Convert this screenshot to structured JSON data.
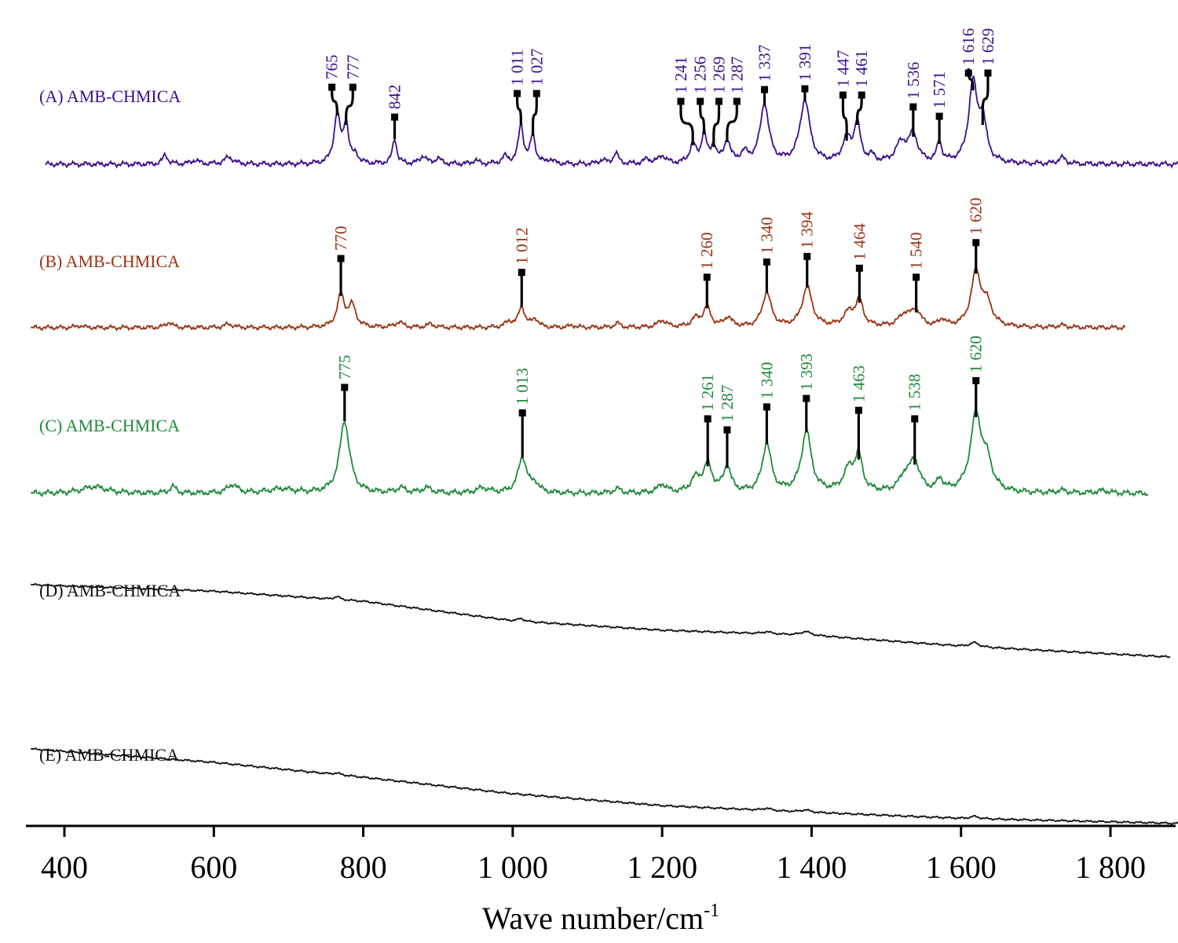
{
  "chart_data": {
    "type": "line",
    "title": "",
    "xlabel": "Wave number/cm",
    "xlabel_superscript": "-1",
    "ylabel": "",
    "xlim": [
      350,
      1900
    ],
    "x_ticks": [
      {
        "value": 400,
        "label": "400"
      },
      {
        "value": 600,
        "label": "600"
      },
      {
        "value": 800,
        "label": "800"
      },
      {
        "value": 1000,
        "label": "1 000"
      },
      {
        "value": 1200,
        "label": "1 200"
      },
      {
        "value": 1400,
        "label": "1 400"
      },
      {
        "value": 1600,
        "label": "1 600"
      },
      {
        "value": 1800,
        "label": "1 800"
      }
    ],
    "series": [
      {
        "id": "A",
        "name": "(A)  AMB-CHMICA",
        "color": "#3b0f8a",
        "x_range": [
          375,
          1890
        ],
        "baseline": 0.0,
        "background": [],
        "peaks": [
          {
            "x": 535,
            "height": 0.12,
            "width": 4
          },
          {
            "x": 575,
            "height": 0.05,
            "width": 6
          },
          {
            "x": 620,
            "height": 0.09,
            "width": 7
          },
          {
            "x": 765,
            "height": 0.62,
            "width": 5
          },
          {
            "x": 777,
            "height": 0.5,
            "width": 4
          },
          {
            "x": 790,
            "height": 0.1,
            "width": 4
          },
          {
            "x": 842,
            "height": 0.32,
            "width": 3.5
          },
          {
            "x": 880,
            "height": 0.1,
            "width": 5
          },
          {
            "x": 900,
            "height": 0.07,
            "width": 5
          },
          {
            "x": 950,
            "height": 0.05,
            "width": 4
          },
          {
            "x": 990,
            "height": 0.09,
            "width": 5
          },
          {
            "x": 1011,
            "height": 0.5,
            "width": 4
          },
          {
            "x": 1027,
            "height": 0.36,
            "width": 4
          },
          {
            "x": 1050,
            "height": 0.05,
            "width": 5
          },
          {
            "x": 1120,
            "height": 0.05,
            "width": 5
          },
          {
            "x": 1138,
            "height": 0.14,
            "width": 4
          },
          {
            "x": 1180,
            "height": 0.06,
            "width": 5
          },
          {
            "x": 1200,
            "height": 0.1,
            "width": 6
          },
          {
            "x": 1241,
            "height": 0.24,
            "width": 5
          },
          {
            "x": 1256,
            "height": 0.38,
            "width": 4
          },
          {
            "x": 1269,
            "height": 0.22,
            "width": 4
          },
          {
            "x": 1287,
            "height": 0.28,
            "width": 5
          },
          {
            "x": 1310,
            "height": 0.12,
            "width": 6
          },
          {
            "x": 1337,
            "height": 0.75,
            "width": 7
          },
          {
            "x": 1391,
            "height": 0.8,
            "width": 8
          },
          {
            "x": 1447,
            "height": 0.3,
            "width": 7
          },
          {
            "x": 1461,
            "height": 0.5,
            "width": 5
          },
          {
            "x": 1480,
            "height": 0.08,
            "width": 5
          },
          {
            "x": 1520,
            "height": 0.25,
            "width": 9
          },
          {
            "x": 1536,
            "height": 0.35,
            "width": 7
          },
          {
            "x": 1571,
            "height": 0.26,
            "width": 4
          },
          {
            "x": 1616,
            "height": 1.0,
            "width": 7
          },
          {
            "x": 1629,
            "height": 0.5,
            "width": 6
          },
          {
            "x": 1735,
            "height": 0.08,
            "width": 6
          }
        ],
        "labels": [
          {
            "text": "765",
            "x": 765,
            "tip": 0.62,
            "lx": 758,
            "top": 0.98
          },
          {
            "text": "777",
            "x": 777,
            "tip": 0.5,
            "lx": 786,
            "top": 0.98
          },
          {
            "text": "842",
            "x": 842,
            "tip": 0.32,
            "lx": 842,
            "top": 0.6
          },
          {
            "text": "1 011",
            "x": 1011,
            "tip": 0.5,
            "lx": 1006,
            "top": 0.9
          },
          {
            "text": "1 027",
            "x": 1027,
            "tip": 0.36,
            "lx": 1032,
            "top": 0.9
          },
          {
            "text": "1 241",
            "x": 1241,
            "tip": 0.24,
            "lx": 1225,
            "top": 0.8
          },
          {
            "text": "1 256",
            "x": 1256,
            "tip": 0.38,
            "lx": 1251,
            "top": 0.8
          },
          {
            "text": "1 269",
            "x": 1269,
            "tip": 0.22,
            "lx": 1276,
            "top": 0.8
          },
          {
            "text": "1 287",
            "x": 1287,
            "tip": 0.28,
            "lx": 1300,
            "top": 0.8
          },
          {
            "text": "1 337",
            "x": 1337,
            "tip": 0.75,
            "lx": 1337,
            "top": 0.95
          },
          {
            "text": "1 391",
            "x": 1391,
            "tip": 0.8,
            "lx": 1391,
            "top": 0.96
          },
          {
            "text": "1 447",
            "x": 1447,
            "tip": 0.3,
            "lx": 1442,
            "top": 0.88
          },
          {
            "text": "1 461",
            "x": 1461,
            "tip": 0.5,
            "lx": 1467,
            "top": 0.88
          },
          {
            "text": "1 536",
            "x": 1536,
            "tip": 0.35,
            "lx": 1536,
            "top": 0.73
          },
          {
            "text": "1 571",
            "x": 1571,
            "tip": 0.26,
            "lx": 1571,
            "top": 0.61
          },
          {
            "text": "1 616",
            "x": 1616,
            "tip": 1.0,
            "lx": 1610,
            "top": 1.16
          },
          {
            "text": "1 629",
            "x": 1629,
            "tip": 0.5,
            "lx": 1636,
            "top": 1.16
          }
        ]
      },
      {
        "id": "B",
        "name": "(B)  AMB-CHMICA",
        "color": "#9a3412",
        "x_range": [
          355,
          1820
        ],
        "baseline": 0.0,
        "background": [],
        "peaks": [
          {
            "x": 420,
            "height": 0.03,
            "width": 6
          },
          {
            "x": 540,
            "height": 0.08,
            "width": 5
          },
          {
            "x": 620,
            "height": 0.05,
            "width": 7
          },
          {
            "x": 770,
            "height": 0.46,
            "width": 6
          },
          {
            "x": 785,
            "height": 0.3,
            "width": 6
          },
          {
            "x": 848,
            "height": 0.08,
            "width": 6
          },
          {
            "x": 890,
            "height": 0.05,
            "width": 6
          },
          {
            "x": 995,
            "height": 0.08,
            "width": 6
          },
          {
            "x": 1012,
            "height": 0.3,
            "width": 5
          },
          {
            "x": 1030,
            "height": 0.12,
            "width": 5
          },
          {
            "x": 1080,
            "height": 0.03,
            "width": 5
          },
          {
            "x": 1140,
            "height": 0.06,
            "width": 5
          },
          {
            "x": 1200,
            "height": 0.1,
            "width": 7
          },
          {
            "x": 1245,
            "height": 0.12,
            "width": 7
          },
          {
            "x": 1260,
            "height": 0.28,
            "width": 6
          },
          {
            "x": 1288,
            "height": 0.14,
            "width": 6
          },
          {
            "x": 1340,
            "height": 0.5,
            "width": 7
          },
          {
            "x": 1394,
            "height": 0.58,
            "width": 8
          },
          {
            "x": 1450,
            "height": 0.2,
            "width": 9
          },
          {
            "x": 1464,
            "height": 0.36,
            "width": 6
          },
          {
            "x": 1525,
            "height": 0.18,
            "width": 10
          },
          {
            "x": 1540,
            "height": 0.22,
            "width": 7
          },
          {
            "x": 1575,
            "height": 0.1,
            "width": 5
          },
          {
            "x": 1620,
            "height": 0.78,
            "width": 8
          },
          {
            "x": 1635,
            "height": 0.3,
            "width": 8
          },
          {
            "x": 1735,
            "height": 0.03,
            "width": 7
          }
        ],
        "labels": [
          {
            "text": "770",
            "x": 770,
            "tip": 0.46,
            "lx": 770,
            "top": 1.0
          },
          {
            "text": "1 012",
            "x": 1012,
            "tip": 0.3,
            "lx": 1012,
            "top": 0.8
          },
          {
            "text": "1 260",
            "x": 1260,
            "tip": 0.28,
            "lx": 1260,
            "top": 0.73
          },
          {
            "text": "1 340",
            "x": 1340,
            "tip": 0.5,
            "lx": 1340,
            "top": 0.95
          },
          {
            "text": "1 394",
            "x": 1394,
            "tip": 0.58,
            "lx": 1394,
            "top": 1.03
          },
          {
            "text": "1 464",
            "x": 1464,
            "tip": 0.36,
            "lx": 1464,
            "top": 0.86
          },
          {
            "text": "1 540",
            "x": 1540,
            "tip": 0.22,
            "lx": 1540,
            "top": 0.73
          },
          {
            "text": "1 620",
            "x": 1620,
            "tip": 0.78,
            "lx": 1620,
            "top": 1.23
          }
        ]
      },
      {
        "id": "C",
        "name": "(C)  AMB-CHMICA",
        "color": "#1f8a3a",
        "x_range": [
          355,
          1850
        ],
        "baseline": 0.0,
        "background": [],
        "peaks": [
          {
            "x": 440,
            "height": 0.08,
            "width": 20
          },
          {
            "x": 545,
            "height": 0.08,
            "width": 5
          },
          {
            "x": 625,
            "height": 0.1,
            "width": 8
          },
          {
            "x": 690,
            "height": 0.05,
            "width": 20
          },
          {
            "x": 775,
            "height": 0.85,
            "width": 8
          },
          {
            "x": 850,
            "height": 0.06,
            "width": 7
          },
          {
            "x": 885,
            "height": 0.06,
            "width": 8
          },
          {
            "x": 960,
            "height": 0.06,
            "width": 10
          },
          {
            "x": 1013,
            "height": 0.42,
            "width": 7
          },
          {
            "x": 1030,
            "height": 0.1,
            "width": 6
          },
          {
            "x": 1140,
            "height": 0.05,
            "width": 6
          },
          {
            "x": 1200,
            "height": 0.1,
            "width": 7
          },
          {
            "x": 1245,
            "height": 0.16,
            "width": 8
          },
          {
            "x": 1261,
            "height": 0.32,
            "width": 7
          },
          {
            "x": 1287,
            "height": 0.3,
            "width": 6
          },
          {
            "x": 1340,
            "height": 0.58,
            "width": 7
          },
          {
            "x": 1393,
            "height": 0.72,
            "width": 8
          },
          {
            "x": 1450,
            "height": 0.26,
            "width": 9
          },
          {
            "x": 1463,
            "height": 0.4,
            "width": 6
          },
          {
            "x": 1525,
            "height": 0.18,
            "width": 9
          },
          {
            "x": 1538,
            "height": 0.34,
            "width": 8
          },
          {
            "x": 1572,
            "height": 0.14,
            "width": 5
          },
          {
            "x": 1620,
            "height": 0.9,
            "width": 9
          },
          {
            "x": 1635,
            "height": 0.3,
            "width": 8
          },
          {
            "x": 1735,
            "height": 0.03,
            "width": 8
          },
          {
            "x": 1790,
            "height": 0.03,
            "width": 10
          }
        ],
        "labels": [
          {
            "text": "775",
            "x": 775,
            "tip": 0.85,
            "lx": 775,
            "top": 1.25
          },
          {
            "text": "1 013",
            "x": 1013,
            "tip": 0.42,
            "lx": 1013,
            "top": 0.95
          },
          {
            "text": "1 261",
            "x": 1261,
            "tip": 0.32,
            "lx": 1261,
            "top": 0.88
          },
          {
            "text": "1 287",
            "x": 1287,
            "tip": 0.3,
            "lx": 1287,
            "top": 0.75
          },
          {
            "text": "1 340",
            "x": 1340,
            "tip": 0.58,
            "lx": 1340,
            "top": 1.02
          },
          {
            "text": "1 393",
            "x": 1393,
            "tip": 0.72,
            "lx": 1393,
            "top": 1.12
          },
          {
            "text": "1 463",
            "x": 1463,
            "tip": 0.4,
            "lx": 1463,
            "top": 0.98
          },
          {
            "text": "1 538",
            "x": 1538,
            "tip": 0.34,
            "lx": 1538,
            "top": 0.88
          },
          {
            "text": "1 620",
            "x": 1620,
            "tip": 0.9,
            "lx": 1620,
            "top": 1.33
          }
        ]
      },
      {
        "id": "D",
        "name": "(D)  AMB-CHMICA",
        "color": "#111111",
        "x_range": [
          355,
          1880
        ],
        "baseline": 0.0,
        "background": [
          [
            355,
            1.0
          ],
          [
            600,
            0.91
          ],
          [
            800,
            0.77
          ],
          [
            1000,
            0.5
          ],
          [
            1200,
            0.37
          ],
          [
            1400,
            0.3
          ],
          [
            1600,
            0.15
          ],
          [
            1880,
            0.0
          ]
        ],
        "peaks": [
          {
            "x": 765,
            "height": 0.04,
            "width": 5
          },
          {
            "x": 1011,
            "height": 0.04,
            "width": 5
          },
          {
            "x": 1340,
            "height": 0.03,
            "width": 6
          },
          {
            "x": 1392,
            "height": 0.05,
            "width": 7
          },
          {
            "x": 1618,
            "height": 0.06,
            "width": 7
          }
        ],
        "labels": []
      },
      {
        "id": "E",
        "name": "(E)  AMB-CHMICA",
        "color": "#111111",
        "x_range": [
          355,
          1900
        ],
        "baseline": 0.0,
        "background": [
          [
            355,
            1.0
          ],
          [
            600,
            0.82
          ],
          [
            800,
            0.62
          ],
          [
            1000,
            0.4
          ],
          [
            1200,
            0.24
          ],
          [
            1400,
            0.15
          ],
          [
            1600,
            0.07
          ],
          [
            1900,
            0.0
          ]
        ],
        "peaks": [
          {
            "x": 765,
            "height": 0.02,
            "width": 6
          },
          {
            "x": 1340,
            "height": 0.03,
            "width": 6
          },
          {
            "x": 1392,
            "height": 0.03,
            "width": 7
          },
          {
            "x": 1618,
            "height": 0.03,
            "width": 7
          }
        ],
        "labels": []
      }
    ]
  }
}
